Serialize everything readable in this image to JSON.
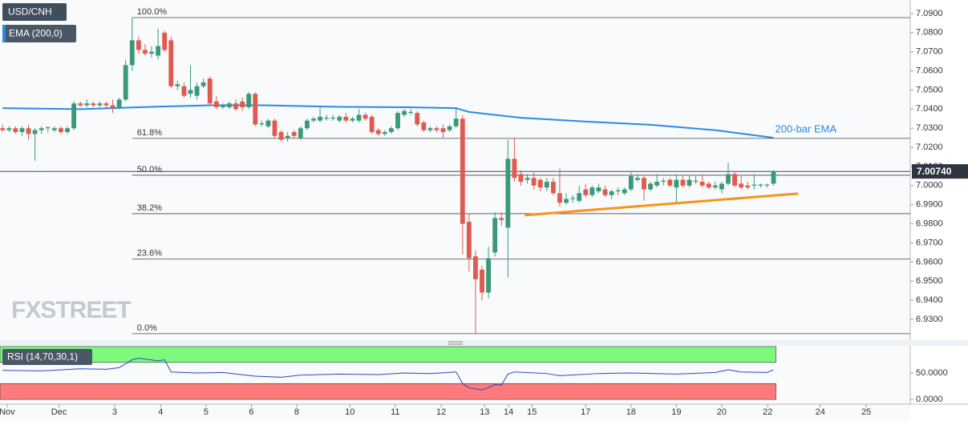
{
  "chart_data": [
    {
      "type": "candlestick",
      "title": "USD/CNH",
      "watermark": "FXSTREET",
      "up_color": "#3a9a78",
      "down_color": "#e05a4f",
      "xlim": [
        -0.4,
        140.1
      ],
      "ylim": [
        6.9191,
        7.0971
      ],
      "xticks": [
        {
          "value": 0.7,
          "label": "Nov"
        },
        {
          "value": 8.7,
          "label": "Dec"
        },
        {
          "value": 17.3,
          "label": "3"
        },
        {
          "value": 24.4,
          "label": "4"
        },
        {
          "value": 31.4,
          "label": "5"
        },
        {
          "value": 38.4,
          "label": "6"
        },
        {
          "value": 45.4,
          "label": "8"
        },
        {
          "value": 53.6,
          "label": "10"
        },
        {
          "value": 60.6,
          "label": "11"
        },
        {
          "value": 67.7,
          "label": "12"
        },
        {
          "value": 74.4,
          "label": "13"
        },
        {
          "value": 78.1,
          "label": "14"
        },
        {
          "value": 81.7,
          "label": "15"
        },
        {
          "value": 90,
          "label": "17"
        },
        {
          "value": 97,
          "label": "18"
        },
        {
          "value": 104,
          "label": "19"
        },
        {
          "value": 111,
          "label": "20"
        },
        {
          "value": 118.1,
          "label": "22"
        },
        {
          "value": 126.2,
          "label": "24"
        },
        {
          "value": 133.3,
          "label": "25"
        }
      ],
      "yticks": [
        {
          "value": 7.09,
          "label": "7.0900"
        },
        {
          "value": 7.08,
          "label": "7.0800"
        },
        {
          "value": 7.07,
          "label": "7.0700"
        },
        {
          "value": 7.06,
          "label": "7.0600"
        },
        {
          "value": 7.05,
          "label": "7.0500"
        },
        {
          "value": 7.04,
          "label": "7.0400"
        },
        {
          "value": 7.03,
          "label": "7.0300"
        },
        {
          "value": 7.02,
          "label": "7.0200"
        },
        {
          "value": 7.01,
          "label": "7.0100"
        },
        {
          "value": 7.0,
          "label": "7.0000"
        },
        {
          "value": 6.99,
          "label": "6.9900"
        },
        {
          "value": 6.98,
          "label": "6.9800"
        },
        {
          "value": 6.97,
          "label": "6.9700"
        },
        {
          "value": 6.96,
          "label": "6.9600"
        },
        {
          "value": 6.95,
          "label": "6.9500"
        },
        {
          "value": 6.94,
          "label": "6.9400"
        },
        {
          "value": 6.93,
          "label": "6.9300"
        }
      ],
      "last": {
        "value": 7.0074,
        "label": "7.00740"
      },
      "ema": {
        "name": "EMA (200,0)",
        "label": "200-bar EMA",
        "color": "#2b8ae0",
        "x": [
          0,
          12,
          24,
          32,
          40,
          52,
          62,
          70,
          72,
          80,
          90,
          100,
          110,
          119
        ],
        "values": [
          7.0405,
          7.04,
          7.0413,
          7.042,
          7.042,
          7.0412,
          7.041,
          7.0405,
          7.0385,
          7.0355,
          7.0335,
          7.0318,
          7.029,
          7.025
        ]
      },
      "trendline": {
        "color": "#f7941d",
        "x": [
          80.6,
          122.8
        ],
        "values": [
          6.9845,
          6.9958
        ]
      },
      "fibonacci": {
        "x_start": 20,
        "levels": [
          {
            "label": "100.0%",
            "value": 7.0879
          },
          {
            "label": "61.8%",
            "value": 7.0247
          },
          {
            "label": "50.0%",
            "value": 7.0054
          },
          {
            "label": "38.2%",
            "value": 6.9853
          },
          {
            "label": "23.6%",
            "value": 6.9615
          },
          {
            "label": "0.0%",
            "value": 6.9225
          }
        ]
      },
      "ohlc": [
        [
          7.03,
          7.032,
          7.028,
          7.029
        ],
        [
          7.029,
          7.031,
          7.028,
          7.03
        ],
        [
          7.03,
          7.031,
          7.027,
          7.028
        ],
        [
          7.028,
          7.031,
          7.026,
          7.03
        ],
        [
          7.03,
          7.032,
          7.024,
          7.027
        ],
        [
          7.027,
          7.03,
          7.013,
          7.029
        ],
        [
          7.029,
          7.031,
          7.027,
          7.03
        ],
        [
          7.03,
          7.031,
          7.028,
          7.0305
        ],
        [
          7.029,
          7.031,
          7.028,
          7.03
        ],
        [
          7.03,
          7.031,
          7.027,
          7.028
        ],
        [
          7.028,
          7.031,
          7.027,
          7.03
        ],
        [
          7.03,
          7.044,
          7.029,
          7.043
        ],
        [
          7.043,
          7.044,
          7.041,
          7.042
        ],
        [
          7.042,
          7.045,
          7.041,
          7.043
        ],
        [
          7.043,
          7.044,
          7.041,
          7.042
        ],
        [
          7.042,
          7.044,
          7.041,
          7.043
        ],
        [
          7.043,
          7.044,
          7.04,
          7.042
        ],
        [
          7.042,
          7.045,
          7.038,
          7.041
        ],
        [
          7.041,
          7.046,
          7.04,
          7.045
        ],
        [
          7.045,
          7.066,
          7.044,
          7.063
        ],
        [
          7.063,
          7.088,
          7.06,
          7.076
        ],
        [
          7.076,
          7.078,
          7.069,
          7.071
        ],
        [
          7.071,
          7.074,
          7.068,
          7.069
        ],
        [
          7.069,
          7.073,
          7.067,
          7.07
        ],
        [
          7.068,
          7.082,
          7.066,
          7.073
        ],
        [
          7.08,
          7.081,
          7.07,
          7.071
        ],
        [
          7.076,
          7.078,
          7.051,
          7.052
        ],
        [
          7.052,
          7.055,
          7.05,
          7.053
        ],
        [
          7.052,
          7.054,
          7.046,
          7.047
        ],
        [
          7.048,
          7.063,
          7.046,
          7.05
        ],
        [
          7.047,
          7.054,
          7.045,
          7.052
        ],
        [
          7.052,
          7.056,
          7.051,
          7.054
        ],
        [
          7.056,
          7.057,
          7.042,
          7.043
        ],
        [
          7.044,
          7.047,
          7.04,
          7.041
        ],
        [
          7.041,
          7.043,
          7.04,
          7.042
        ],
        [
          7.041,
          7.044,
          7.04,
          7.043
        ],
        [
          7.043,
          7.045,
          7.039,
          7.04
        ],
        [
          7.044,
          7.046,
          7.039,
          7.041
        ],
        [
          7.041,
          7.049,
          7.04,
          7.048
        ],
        [
          7.048,
          7.049,
          7.031,
          7.032
        ],
        [
          7.032,
          7.034,
          7.031,
          7.0325
        ],
        [
          7.031,
          7.035,
          7.03,
          7.034
        ],
        [
          7.034,
          7.035,
          7.025,
          7.026
        ],
        [
          7.028,
          7.029,
          7.023,
          7.024
        ],
        [
          7.025,
          7.028,
          7.023,
          7.026
        ],
        [
          7.028,
          7.029,
          7.025,
          7.026
        ],
        [
          7.025,
          7.031,
          7.024,
          7.03
        ],
        [
          7.03,
          7.035,
          7.029,
          7.034
        ],
        [
          7.034,
          7.036,
          7.033,
          7.035
        ],
        [
          7.034,
          7.041,
          7.033,
          7.036
        ],
        [
          7.035,
          7.037,
          7.034,
          7.0355
        ],
        [
          7.035,
          7.037,
          7.034,
          7.0355
        ],
        [
          7.034,
          7.037,
          7.033,
          7.036
        ],
        [
          7.036,
          7.038,
          7.033,
          7.034
        ],
        [
          7.034,
          7.036,
          7.033,
          7.035
        ],
        [
          7.034,
          7.04,
          7.033,
          7.037
        ],
        [
          7.037,
          7.038,
          7.034,
          7.035
        ],
        [
          7.036,
          7.037,
          7.027,
          7.028
        ],
        [
          7.029,
          7.03,
          7.026,
          7.027
        ],
        [
          7.027,
          7.029,
          7.026,
          7.028
        ],
        [
          7.028,
          7.031,
          7.027,
          7.03
        ],
        [
          7.03,
          7.039,
          7.029,
          7.038
        ],
        [
          7.037,
          7.04,
          7.036,
          7.039
        ],
        [
          7.038,
          7.04,
          7.037,
          7.0385
        ],
        [
          7.038,
          7.039,
          7.031,
          7.032
        ],
        [
          7.033,
          7.034,
          7.028,
          7.029
        ],
        [
          7.029,
          7.031,
          7.028,
          7.03
        ],
        [
          7.03,
          7.031,
          7.028,
          7.029
        ],
        [
          7.03,
          7.032,
          7.025,
          7.028
        ],
        [
          7.029,
          7.032,
          7.028,
          7.031
        ],
        [
          7.031,
          7.041,
          7.03,
          7.035
        ],
        [
          7.035,
          7.037,
          6.964,
          6.98
        ],
        [
          6.981,
          6.985,
          6.955,
          6.962
        ],
        [
          6.963,
          6.966,
          6.9225,
          6.951
        ],
        [
          6.956,
          6.958,
          6.94,
          6.944
        ],
        [
          6.944,
          6.968,
          6.941,
          6.962
        ],
        [
          6.965,
          6.986,
          6.963,
          6.983
        ],
        [
          6.983,
          6.986,
          6.979,
          6.982
        ],
        [
          6.978,
          7.024,
          6.952,
          7.014
        ],
        [
          7.014,
          7.025,
          7.002,
          7.004
        ],
        [
          7.006,
          7.008,
          7.0,
          7.002
        ],
        [
          7.003,
          7.006,
          7.001,
          7.004
        ],
        [
          7.004,
          7.007,
          6.998,
          7.0
        ],
        [
          7.003,
          7.004,
          6.997,
          6.999
        ],
        [
          6.999,
          7.004,
          6.997,
          7.002
        ],
        [
          7.002,
          7.004,
          6.995,
          6.996
        ],
        [
          6.996,
          7.009,
          6.989,
          6.991
        ],
        [
          6.991,
          6.996,
          6.99,
          6.993
        ],
        [
          6.993,
          6.995,
          6.991,
          6.9935
        ],
        [
          6.992,
          7.0,
          6.991,
          6.996
        ],
        [
          6.998,
          7.001,
          6.994,
          6.995
        ],
        [
          6.995,
          7.0,
          6.994,
          6.999
        ],
        [
          6.997,
          7.001,
          6.996,
          6.999
        ],
        [
          6.998,
          7.0,
          6.994,
          6.995
        ],
        [
          6.995,
          6.998,
          6.993,
          6.997
        ],
        [
          6.997,
          6.999,
          6.995,
          6.9975
        ],
        [
          6.996,
          6.999,
          6.995,
          6.998
        ],
        [
          6.998,
          7.007,
          6.997,
          7.005
        ],
        [
          7.003,
          7.006,
          7.002,
          7.004
        ],
        [
          7.004,
          7.005,
          6.992,
          6.998
        ],
        [
          6.998,
          7.002,
          6.997,
          7.001
        ],
        [
          7.0,
          7.006,
          6.999,
          7.002
        ],
        [
          7.002,
          7.004,
          7.0,
          7.0025
        ],
        [
          7.003,
          7.004,
          6.999,
          7.0
        ],
        [
          6.999,
          7.006,
          6.991,
          7.003
        ],
        [
          7.003,
          7.005,
          6.999,
          7.0
        ],
        [
          7.0,
          7.005,
          6.999,
          7.003
        ],
        [
          7.002,
          7.005,
          7.001,
          7.0025
        ],
        [
          7.002,
          7.006,
          6.999,
          7.0
        ],
        [
          7.001,
          7.002,
          6.998,
          6.999
        ],
        [
          6.999,
          7.002,
          6.998,
          7.0
        ],
        [
          6.998,
          7.002,
          6.996,
          7.001
        ],
        [
          7.001,
          7.012,
          7.0,
          7.006
        ],
        [
          7.006,
          7.007,
          6.999,
          7.0
        ],
        [
          7.001,
          7.005,
          6.998,
          6.999
        ],
        [
          7.0,
          7.002,
          6.998,
          6.999
        ],
        [
          7.0,
          7.006,
          6.998,
          7.0005
        ],
        [
          7.0,
          7.001,
          6.999,
          7.0005
        ],
        [
          7.0,
          7.001,
          6.999,
          7.0005
        ],
        [
          7.001,
          7.008,
          7.0,
          7.0074
        ]
      ]
    },
    {
      "type": "line",
      "title": "RSI (14,70,30,1)",
      "color": "#2f45c8",
      "xlim": [
        -0.4,
        140.1
      ],
      "ylim": [
        -9,
        100
      ],
      "yticks": [
        {
          "value": 50,
          "label": "50.0000"
        },
        {
          "value": 0,
          "label": "0.0000"
        }
      ],
      "bands": [
        {
          "from": 70,
          "to": 100,
          "color": "#7dfa7d"
        },
        {
          "from": 0,
          "to": 30,
          "color": "#ff7b7b"
        }
      ],
      "x": [
        0,
        6,
        12,
        16,
        18,
        20,
        21,
        24,
        25,
        26,
        30,
        34,
        39,
        43,
        46,
        52,
        58,
        62,
        66,
        70,
        71,
        72,
        73,
        74,
        75,
        76,
        77,
        78,
        79,
        84,
        86,
        92,
        97,
        104,
        110,
        112,
        114,
        118,
        119
      ],
      "values": [
        55,
        54,
        58,
        57,
        60,
        75,
        78,
        73,
        75,
        52,
        50,
        51,
        44,
        42,
        46,
        48,
        47,
        50,
        49,
        52,
        30,
        22,
        20,
        18,
        22,
        28,
        27,
        48,
        52,
        49,
        45,
        49,
        50,
        48,
        51,
        56,
        52,
        51,
        56
      ]
    }
  ]
}
